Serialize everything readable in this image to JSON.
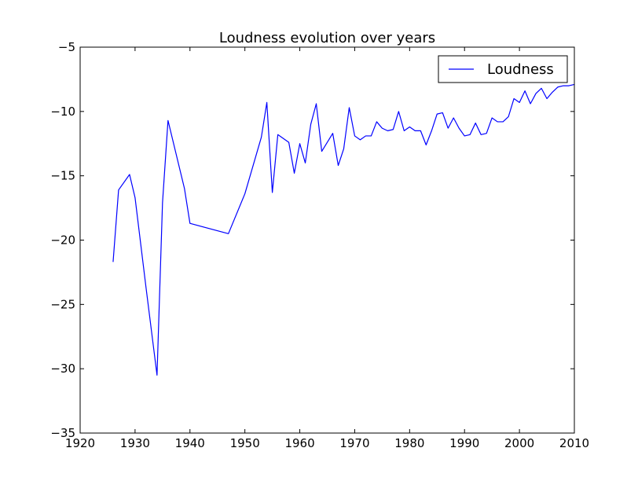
{
  "chart_data": {
    "type": "line",
    "title": "Loudness evolution over years",
    "xlabel": "",
    "ylabel": "",
    "xlim": [
      1920,
      2010
    ],
    "ylim": [
      -35,
      -5
    ],
    "xticks": [
      1920,
      1930,
      1940,
      1950,
      1960,
      1970,
      1980,
      1990,
      2000,
      2010
    ],
    "yticks": [
      -35,
      -30,
      -25,
      -20,
      -15,
      -10,
      -5
    ],
    "grid": false,
    "legend_position": "top-right",
    "series": [
      {
        "name": "Loudness",
        "color": "#0000ff",
        "x": [
          1926,
          1927,
          1929,
          1930,
          1932,
          1934,
          1935,
          1936,
          1939,
          1940,
          1947,
          1950,
          1953,
          1954,
          1955,
          1956,
          1958,
          1959,
          1960,
          1961,
          1962,
          1963,
          1964,
          1966,
          1967,
          1968,
          1969,
          1970,
          1971,
          1972,
          1973,
          1974,
          1975,
          1976,
          1977,
          1978,
          1979,
          1980,
          1981,
          1982,
          1983,
          1984,
          1985,
          1986,
          1987,
          1988,
          1989,
          1990,
          1991,
          1992,
          1993,
          1994,
          1995,
          1996,
          1997,
          1998,
          1999,
          2000,
          2001,
          2002,
          2003,
          2004,
          2005,
          2006,
          2007,
          2008,
          2009,
          2010
        ],
        "values": [
          -21.7,
          -16.1,
          -14.9,
          -16.7,
          -23.7,
          -30.5,
          -17.1,
          -10.7,
          -16.0,
          -18.7,
          -19.5,
          -16.4,
          -12.0,
          -9.3,
          -16.3,
          -11.8,
          -12.4,
          -14.8,
          -12.5,
          -14.0,
          -11.0,
          -9.4,
          -13.1,
          -11.7,
          -14.2,
          -12.9,
          -9.7,
          -11.9,
          -12.2,
          -11.9,
          -11.9,
          -10.8,
          -11.3,
          -11.5,
          -11.4,
          -10.0,
          -11.5,
          -11.2,
          -11.5,
          -11.5,
          -12.6,
          -11.5,
          -10.2,
          -10.1,
          -11.3,
          -10.5,
          -11.3,
          -11.9,
          -11.8,
          -10.9,
          -11.8,
          -11.7,
          -10.5,
          -10.8,
          -10.8,
          -10.4,
          -9.0,
          -9.3,
          -8.4,
          -9.4,
          -8.6,
          -8.2,
          -9.0,
          -8.5,
          -8.1,
          -8.0,
          -8.0,
          -7.9
        ]
      }
    ]
  }
}
